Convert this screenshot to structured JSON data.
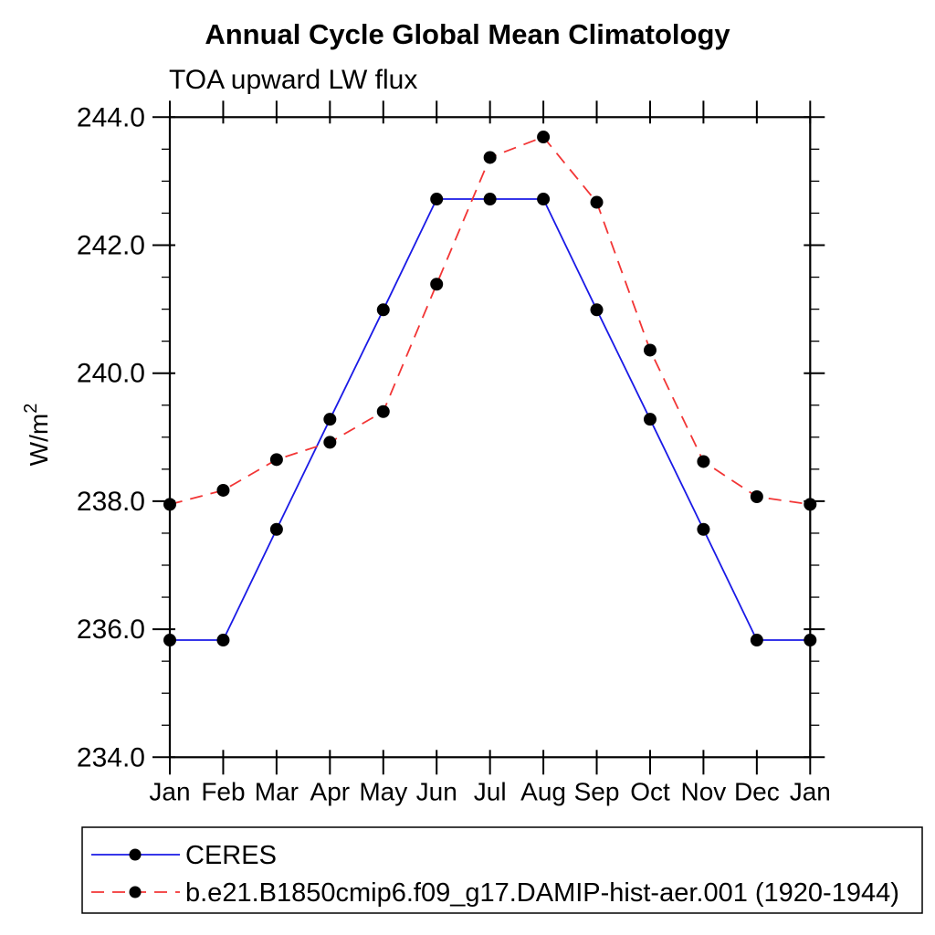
{
  "title": "Annual Cycle Global Mean Climatology",
  "subtitle": "TOA upward LW flux",
  "ylabel": {
    "base": "W/m",
    "sup": "2"
  },
  "chart_data": {
    "type": "line",
    "title": "Annual Cycle Global Mean Climatology",
    "subtitle": "TOA upward LW flux",
    "ylabel": "W/m2",
    "xlabel": "",
    "categories": [
      "Jan",
      "Feb",
      "Mar",
      "Apr",
      "May",
      "Jun",
      "Jul",
      "Aug",
      "Sep",
      "Oct",
      "Nov",
      "Dec",
      "Jan"
    ],
    "series": [
      {
        "name": "CERES",
        "color": "#1a1ae6",
        "style": "solid",
        "marker": "circle",
        "marker_color": "#000000",
        "values": [
          235.83,
          235.83,
          237.56,
          239.28,
          240.99,
          242.72,
          242.72,
          242.72,
          240.99,
          239.28,
          237.56,
          235.83,
          235.83
        ]
      },
      {
        "name": "b.e21.B1850cmip6.f09_g17.DAMIP-hist-aer.001 (1920-1944)",
        "color": "#f23535",
        "style": "dashed",
        "marker": "circle",
        "marker_color": "#000000",
        "values": [
          237.95,
          238.17,
          238.65,
          238.92,
          239.4,
          241.39,
          243.37,
          243.69,
          242.67,
          240.36,
          238.62,
          238.07,
          237.95
        ]
      }
    ],
    "ylim": [
      234.0,
      244.0
    ],
    "ytick_interval": 2.0,
    "yminor_interval": 0.5,
    "yticks": [
      {
        "v": 244.0,
        "label": "244.0"
      },
      {
        "v": 242.0,
        "label": "242.0"
      },
      {
        "v": 240.0,
        "label": "240.0"
      },
      {
        "v": 238.0,
        "label": "238.0"
      },
      {
        "v": 236.0,
        "label": "236.0"
      },
      {
        "v": 234.0,
        "label": "234.0"
      }
    ],
    "grid": false,
    "legend_position": "bottom-left"
  }
}
